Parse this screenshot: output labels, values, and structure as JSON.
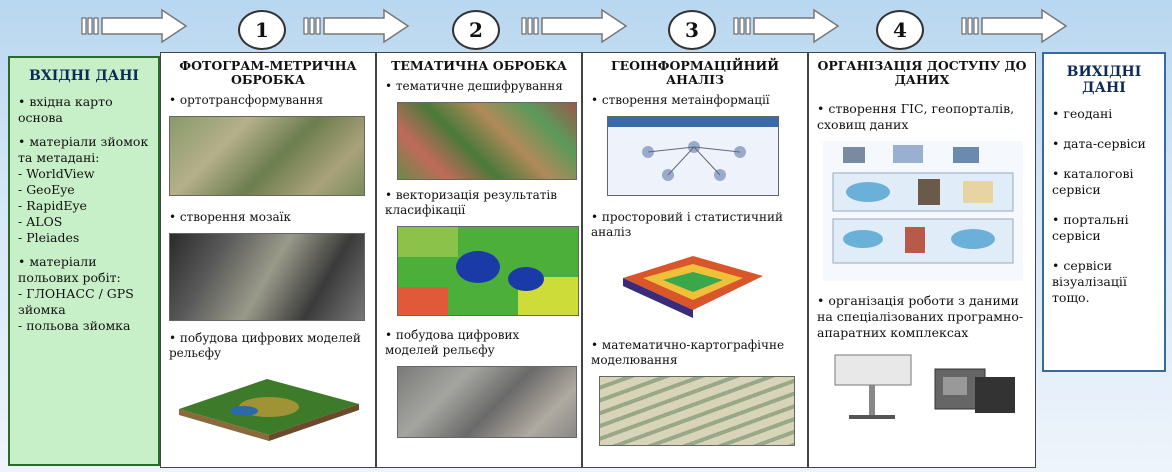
{
  "input": {
    "title": "ВХІДНІ ДАНІ",
    "items": [
      "• вхідна карто основа",
      "• матеріали зйомок та метадані:",
      "- WorldView",
      "- GeoEye",
      "- RapidEye",
      "- ALOS",
      "- Pleiades",
      "• матеріали польових робіт:",
      "- ГЛОНАСС / GPS зйомка",
      "- польова зйомка"
    ]
  },
  "steps": [
    {
      "number": "1",
      "title": "ФОТОГРАМ-МЕТРИЧНА ОБРОБКА",
      "items": [
        "• ортотрансформування",
        "• створення мозаїк",
        "• побудова цифрових моделей рельєфу"
      ]
    },
    {
      "number": "2",
      "title": "ТЕМАТИЧНА ОБРОБКА",
      "items": [
        "• тематичне дешифрування",
        "• векторизація результатів класифікації",
        "• побудова цифрових моделей рельєфу"
      ]
    },
    {
      "number": "3",
      "title": "ГЕОІНФОРМАЦІЙНИЙ АНАЛІЗ",
      "items": [
        "• створення метаінформації",
        "• просторовий і статистичний аналіз",
        "• математично-картографічне моделювання"
      ]
    },
    {
      "number": "4",
      "title": "ОРГАНІЗАЦІЯ ДОСТУПУ ДО ДАНИХ",
      "items": [
        "• створення ГІС, геопорталів, сховищ даних",
        "• організація роботи з даними на спеціалізованих програмно-апаратних комплексах"
      ]
    }
  ],
  "output": {
    "title": "ВИХІДНІ ДАНІ",
    "items": [
      "• геодані",
      "• дата-сервіси",
      "• каталогові сервіси",
      "• портальні сервіси",
      "• сервіси візуалізації тощо."
    ]
  },
  "colors": {
    "input_bg": "#c8f0c8",
    "arrow_fill": "#ffffff",
    "background": "#b8d7f0"
  }
}
